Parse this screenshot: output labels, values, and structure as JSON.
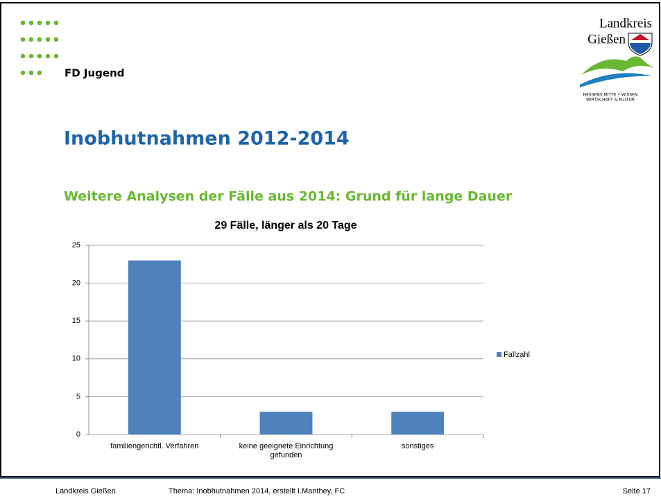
{
  "header": {
    "department": "FD Jugend",
    "logo_line1": "Landkreis",
    "logo_line2": "Gießen",
    "logo_tagline1": "HESSENS MITTE • WISSEN",
    "logo_tagline2": "WIRTSCHAFT & KULTUR"
  },
  "title": "Inobhutnahmen 2012-2014",
  "subtitle": "Weitere Analysen der Fälle aus 2014: Grund für lange Dauer",
  "chart_data": {
    "type": "bar",
    "title": "29 Fälle, länger als 20 Tage",
    "categories": [
      "familiengerichtl. Verfahren",
      "keine geeignete Einrichtung gefunden",
      "sonstiges"
    ],
    "series": [
      {
        "name": "Fallzahl",
        "color": "#4f81bd",
        "values": [
          23,
          3,
          3
        ]
      }
    ],
    "ylim": [
      0,
      25
    ],
    "yticks": [
      0,
      5,
      10,
      15,
      20,
      25
    ],
    "grid": true,
    "legend": "right"
  },
  "footer": {
    "left": "Landkreis Gießen",
    "center": "Thema:  Inobhutnahmen 2014, erstellt I.Manthey, FC",
    "right": "Seite 17"
  }
}
